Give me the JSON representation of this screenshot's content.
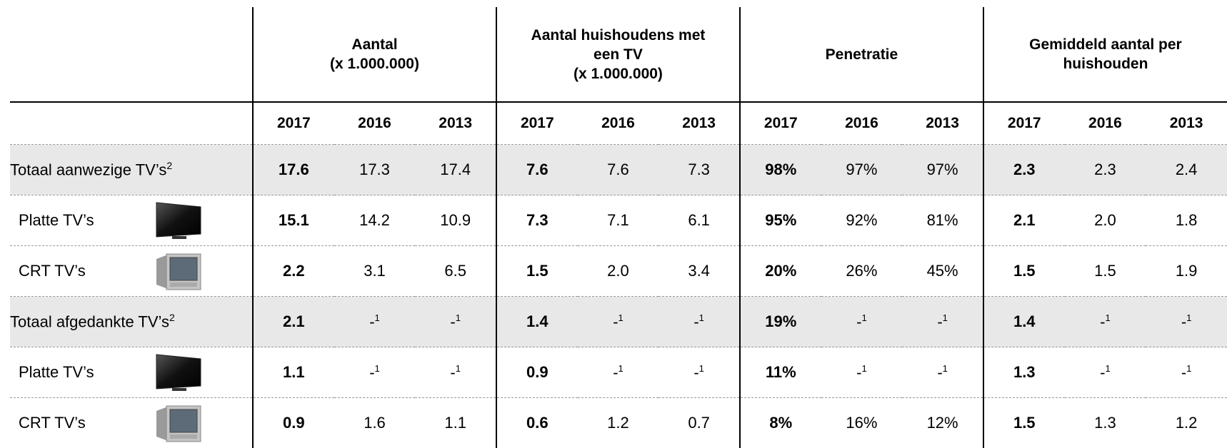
{
  "table": {
    "groups": [
      "Aantal\n(x 1.000.000)",
      "Aantal huishoudens met\neen TV\n(x 1.000.000)",
      "Penetratie",
      "Gemiddeld aantal per\nhuishouden"
    ],
    "years": [
      "2017",
      "2016",
      "2013",
      "2017",
      "2016",
      "2013",
      "2017",
      "2016",
      "2013",
      "2017",
      "2016",
      "2013"
    ],
    "rows": [
      {
        "label": "Totaal aanwezige TV’s",
        "footnote": "2",
        "cells": [
          "17.6",
          "17.3",
          "17.4",
          "7.6",
          "7.6",
          "7.3",
          "98%",
          "97%",
          "97%",
          "2.3",
          "2.3",
          "2.4"
        ]
      },
      {
        "label": "Platte TV’s",
        "cells": [
          "15.1",
          "14.2",
          "10.9",
          "7.3",
          "7.1",
          "6.1",
          "95%",
          "92%",
          "81%",
          "2.1",
          "2.0",
          "1.8"
        ]
      },
      {
        "label": "CRT TV’s",
        "cells": [
          "2.2",
          "3.1",
          "6.5",
          "1.5",
          "2.0",
          "3.4",
          "20%",
          "26%",
          "45%",
          "1.5",
          "1.5",
          "1.9"
        ]
      },
      {
        "label": "Totaal afgedankte TV’s",
        "footnote": "2",
        "cells": [
          "2.1",
          {
            "text": "-",
            "note": "1"
          },
          {
            "text": "-",
            "note": "1"
          },
          "1.4",
          {
            "text": "-",
            "note": "1"
          },
          {
            "text": "-",
            "note": "1"
          },
          "19%",
          {
            "text": "-",
            "note": "1"
          },
          {
            "text": "-",
            "note": "1"
          },
          "1.4",
          {
            "text": "-",
            "note": "1"
          },
          {
            "text": "-",
            "note": "1"
          }
        ]
      },
      {
        "label": "Platte TV’s",
        "cells": [
          "1.1",
          {
            "text": "-",
            "note": "1"
          },
          {
            "text": "-",
            "note": "1"
          },
          "0.9",
          {
            "text": "-",
            "note": "1"
          },
          {
            "text": "-",
            "note": "1"
          },
          "11%",
          {
            "text": "-",
            "note": "1"
          },
          {
            "text": "-",
            "note": "1"
          },
          "1.3",
          {
            "text": "-",
            "note": "1"
          },
          {
            "text": "-",
            "note": "1"
          }
        ]
      },
      {
        "label": "CRT TV’s",
        "cells": [
          "0.9",
          "1.6",
          "1.1",
          "0.6",
          "1.2",
          "0.7",
          "8%",
          "16%",
          "12%",
          "1.5",
          "1.3",
          "1.2"
        ]
      }
    ]
  }
}
